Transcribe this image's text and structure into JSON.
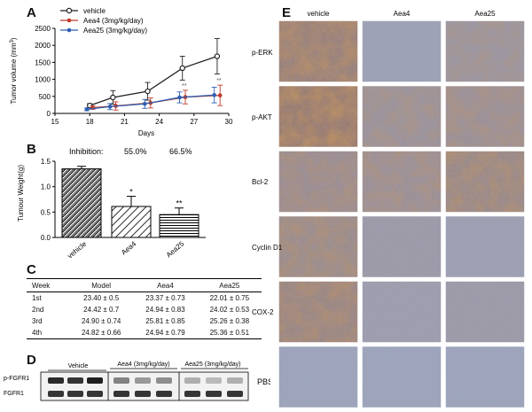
{
  "panels": {
    "a": "A",
    "b": "B",
    "c": "C",
    "d": "D",
    "e": "E"
  },
  "colors": {
    "vehicle": "#222222",
    "aea4": "#c0392b",
    "aea25": "#2f5fb3",
    "stain_brown": "#9b5a2a",
    "stain_blue": "#7f8fb4"
  },
  "chart_data": [
    {
      "type": "line",
      "xlabel": "Days",
      "ylabel": "Tumor volume (mm",
      "ylabel_sup": "3",
      "ylabel_close": ")",
      "xlim": [
        15,
        30
      ],
      "ylim": [
        0,
        2500
      ],
      "xticks": [
        15,
        18,
        21,
        24,
        27,
        30
      ],
      "yticks": [
        0,
        500,
        1000,
        1500,
        2000,
        2500
      ],
      "x": [
        18,
        20,
        23,
        26,
        29
      ],
      "series": [
        {
          "name": "vehicle",
          "values": [
            230,
            470,
            650,
            1330,
            1680
          ],
          "errors": [
            60,
            200,
            260,
            350,
            520
          ]
        },
        {
          "name": "Aea4  (3mg/kg/day)",
          "values": [
            170,
            220,
            310,
            480,
            530
          ],
          "errors": [
            50,
            120,
            150,
            200,
            300
          ]
        },
        {
          "name": "Aea25  (3mg/kg/day)",
          "values": [
            120,
            200,
            280,
            470,
            540
          ],
          "errors": [
            40,
            90,
            130,
            160,
            230
          ]
        }
      ],
      "annotations": [
        "**",
        "**"
      ],
      "legend": "top-left",
      "grid": false
    },
    {
      "type": "bar",
      "ylabel": "Tumour Weight(g)",
      "ylim": [
        0.0,
        1.5
      ],
      "yticks": [
        "0.0",
        "0.5",
        "1.0",
        "1.5"
      ],
      "categories": [
        "vehicle",
        "Aea4",
        "Aea25"
      ],
      "values": [
        1.35,
        0.61,
        0.45
      ],
      "errors": [
        0.05,
        0.2,
        0.13
      ],
      "significance": [
        "",
        "*",
        "**"
      ],
      "inhibition_label": "Inhibition:",
      "inhibition": [
        "",
        "55.0%",
        "66.5%"
      ]
    }
  ],
  "table": {
    "headers": [
      "Week",
      "Model",
      "Aea4",
      "Aea25"
    ],
    "rows": [
      [
        "1st",
        "23.40 ± 0.5",
        "23.37 ± 0.73",
        "22.01 ± 0.75"
      ],
      [
        "2nd",
        "24.42 ± 0.7",
        "24.94 ± 0.83",
        "24.02 ± 0.53"
      ],
      [
        "3rd",
        "24.90 ± 0.74",
        "25.81 ± 0.85",
        "25.26 ± 0.38"
      ],
      [
        "4th",
        "24.82 ± 0.66",
        "24.94 ± 0.79",
        "25.36 ± 0.51"
      ]
    ]
  },
  "blot": {
    "groups": [
      "Vehicle",
      "Aea4 (3mg/kg/day)",
      "Aea25 (3mg/kg/day)"
    ],
    "rows": [
      "p-FGFR1",
      "FGFR1"
    ]
  },
  "ihc": {
    "columns": [
      "vehicle",
      "Aea4",
      "Aea25"
    ],
    "rows": [
      "p-ERK",
      "p-AKT",
      "Bcl-2",
      "Cyclin D1",
      "COX-2",
      "PBS"
    ],
    "intensity": [
      [
        0.75,
        0.1,
        0.35
      ],
      [
        0.85,
        0.4,
        0.45
      ],
      [
        0.5,
        0.45,
        0.6
      ],
      [
        0.55,
        0.25,
        0.15
      ],
      [
        0.65,
        0.2,
        0.25
      ],
      [
        0.05,
        0.05,
        0.05
      ]
    ]
  }
}
